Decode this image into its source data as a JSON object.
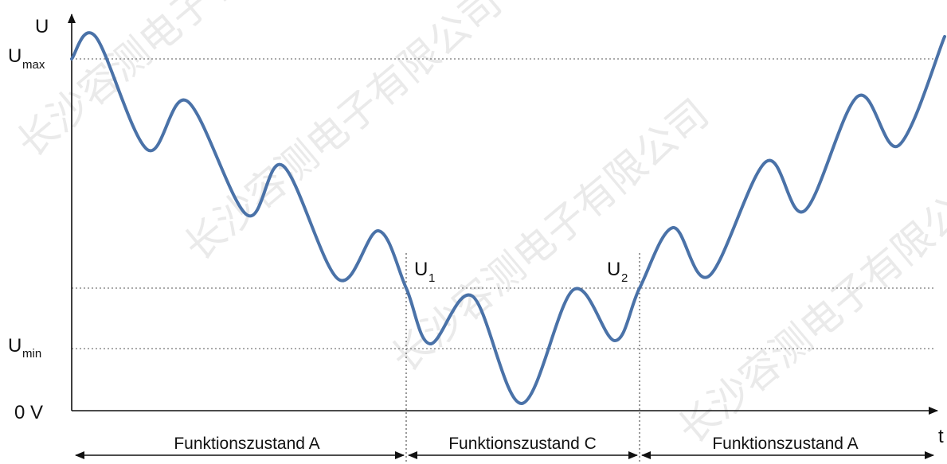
{
  "diagram": {
    "y_axis_label": "U",
    "x_axis_label": "t",
    "levels": {
      "umax": {
        "main": "U",
        "sub": "max"
      },
      "umin": {
        "main": "U",
        "sub": "min"
      },
      "zero": "0 V"
    },
    "crossings": {
      "u1": {
        "main": "U",
        "sub": "1"
      },
      "u2": {
        "main": "U",
        "sub": "2"
      }
    },
    "zones": [
      {
        "label": "Funktionszustand A"
      },
      {
        "label": "Funktionszustand C"
      },
      {
        "label": "Funktionszustand A"
      }
    ],
    "watermark": "长沙容测电子有限公司",
    "colors": {
      "curve": "#4a72a8",
      "axis": "#111111",
      "guide": "#555555"
    }
  }
}
